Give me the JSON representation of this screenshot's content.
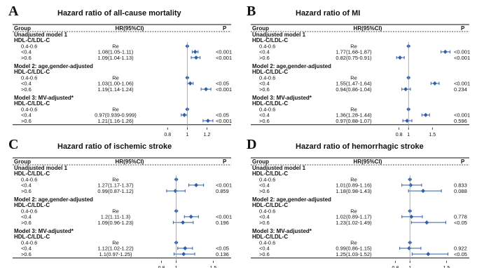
{
  "chart_data": [
    {
      "type": "forest",
      "panel": "A",
      "title": "Hazard ratio of all-cause mortality",
      "headers": {
        "group": "Group",
        "hr": "HR(95%CI)",
        "p": "P"
      },
      "xticks": [
        0.8,
        1,
        1.2
      ],
      "xlim": [
        0.72,
        1.36
      ],
      "ref": 1,
      "rows": [
        {
          "label": "Unadjusted model 1",
          "kind": "model"
        },
        {
          "label": "HDL-C/LDL-C",
          "kind": "sub"
        },
        {
          "label": "0.4-0.6",
          "kind": "ref",
          "hr_text": "Re",
          "est": 1
        },
        {
          "label": "<0.4",
          "kind": "data",
          "hr_text": "1.08(1.05-1.11)",
          "p": "<0.001",
          "est": 1.08,
          "lo": 1.05,
          "hi": 1.11
        },
        {
          "label": ">0.6",
          "kind": "data",
          "hr_text": "1.09(1.04-1.13)",
          "p": "<0.001",
          "est": 1.09,
          "lo": 1.04,
          "hi": 1.13
        },
        {
          "label": "Model 2: age,gender-adjusted",
          "kind": "model"
        },
        {
          "label": "HDL-C/LDL-C",
          "kind": "sub"
        },
        {
          "label": "0.4-0.6",
          "kind": "ref",
          "hr_text": "Re",
          "est": 1
        },
        {
          "label": "<0.4",
          "kind": "data",
          "hr_text": "1.03(1.00-1.06)",
          "p": "<0.05",
          "est": 1.03,
          "lo": 1.0,
          "hi": 1.06
        },
        {
          "label": ">0.6",
          "kind": "data",
          "hr_text": "1.19(1.14-1.24)",
          "p": "<0.001",
          "est": 1.19,
          "lo": 1.14,
          "hi": 1.24
        },
        {
          "label": "Model 3: MV-adjusted*",
          "kind": "model"
        },
        {
          "label": "HDL-C/LDL-C",
          "kind": "sub"
        },
        {
          "label": "0.4-0.6",
          "kind": "ref",
          "hr_text": "Re",
          "est": 1
        },
        {
          "label": "<0.4",
          "kind": "data",
          "hr_text": "0.97(0.939-0.999)",
          "p": "<0.05",
          "est": 0.97,
          "lo": 0.939,
          "hi": 0.999
        },
        {
          "label": ">0.6",
          "kind": "data",
          "hr_text": "1.21(1.16-1.26)",
          "p": "<0.001",
          "est": 1.21,
          "lo": 1.16,
          "hi": 1.26
        }
      ]
    },
    {
      "type": "forest",
      "panel": "B",
      "title": "Hazard ratio of MI",
      "headers": {
        "group": "Group",
        "hr": "HR(95%CI)",
        "p": "P"
      },
      "xticks": [
        0.8,
        1,
        1.5
      ],
      "xlim": [
        0.6,
        1.95
      ],
      "ref": 1,
      "rows": [
        {
          "label": "Unadjusted model 1",
          "kind": "model"
        },
        {
          "label": "HDL-C/LDL-C",
          "kind": "sub"
        },
        {
          "label": "0.4-0.6",
          "kind": "ref",
          "hr_text": "Re",
          "est": 1
        },
        {
          "label": "<0.4",
          "kind": "data",
          "hr_text": "1.77(1.68-1.87)",
          "p": "<0.001",
          "est": 1.77,
          "lo": 1.68,
          "hi": 1.87
        },
        {
          "label": ">0.6",
          "kind": "data",
          "hr_text": "0.82(0.75-0.91)",
          "p": "<0.001",
          "est": 0.82,
          "lo": 0.75,
          "hi": 0.91
        },
        {
          "label": "Model 2: age,gender-adjusted",
          "kind": "model"
        },
        {
          "label": "HDL-C/LDL-C",
          "kind": "sub"
        },
        {
          "label": "0.4-0.6",
          "kind": "ref",
          "hr_text": "Re",
          "est": 1
        },
        {
          "label": "<0.4",
          "kind": "data",
          "hr_text": "1.55(1.47-1.64)",
          "p": "<0.001",
          "est": 1.55,
          "lo": 1.47,
          "hi": 1.64
        },
        {
          "label": ">0.6",
          "kind": "data",
          "hr_text": "0.94(0.86-1.04)",
          "p": "0.234",
          "est": 0.94,
          "lo": 0.86,
          "hi": 1.04
        },
        {
          "label": "Model 3: MV-adjusted*",
          "kind": "model"
        },
        {
          "label": "HDL-C/LDL-C",
          "kind": "sub"
        },
        {
          "label": "0.4-0.6",
          "kind": "ref",
          "hr_text": "Re",
          "est": 1
        },
        {
          "label": "<0.4",
          "kind": "data",
          "hr_text": "1.36(1.28-1.44)",
          "p": "<0.001",
          "est": 1.36,
          "lo": 1.28,
          "hi": 1.44
        },
        {
          "label": ">0.6",
          "kind": "data",
          "hr_text": "0.97(0.88-1.07)",
          "p": "0.596",
          "est": 0.97,
          "lo": 0.88,
          "hi": 1.07
        }
      ]
    },
    {
      "type": "forest",
      "panel": "C",
      "title": "Hazard ratio of ischemic stroke",
      "headers": {
        "group": "Group",
        "hr": "HR(95%CI)",
        "p": "P"
      },
      "xticks": [
        0.8,
        1,
        1.5
      ],
      "xlim": [
        0.72,
        1.6
      ],
      "ref": 1,
      "rows": [
        {
          "label": "Unadjusted model 1",
          "kind": "model"
        },
        {
          "label": "HDL-C/LDL-C",
          "kind": "sub"
        },
        {
          "label": "0.4-0.6",
          "kind": "ref",
          "hr_text": "Re",
          "est": 1
        },
        {
          "label": "<0.4",
          "kind": "data",
          "hr_text": "1.27(1.17-1.37)",
          "p": "<0.001",
          "est": 1.27,
          "lo": 1.17,
          "hi": 1.37
        },
        {
          "label": ">0.6",
          "kind": "data",
          "hr_text": "0.99(0.87-1.12)",
          "p": "0.859",
          "est": 0.99,
          "lo": 0.87,
          "hi": 1.12
        },
        {
          "label": "Model 2: age,gender-adjusted",
          "kind": "model"
        },
        {
          "label": "HDL-C/LDL-C",
          "kind": "sub"
        },
        {
          "label": "0.4-0.6",
          "kind": "ref",
          "hr_text": "Re",
          "est": 1
        },
        {
          "label": "<0.4",
          "kind": "data",
          "hr_text": "1.2(1.11-1.3)",
          "p": "<0.001",
          "est": 1.2,
          "lo": 1.11,
          "hi": 1.3
        },
        {
          "label": ">0.6",
          "kind": "data",
          "hr_text": "1.09(0.96-1.23)",
          "p": "0.196",
          "est": 1.09,
          "lo": 0.96,
          "hi": 1.23
        },
        {
          "label": "Model 3: MV-adjusted*",
          "kind": "model"
        },
        {
          "label": "HDL-C/LDL-C",
          "kind": "sub"
        },
        {
          "label": "0.4-0.6",
          "kind": "ref",
          "hr_text": "Re",
          "est": 1
        },
        {
          "label": "<0.4",
          "kind": "data",
          "hr_text": "1.12(1.02-1.22)",
          "p": "<0.05",
          "est": 1.12,
          "lo": 1.02,
          "hi": 1.22
        },
        {
          "label": ">0.6",
          "kind": "data",
          "hr_text": "1.1(0.97-1.25)",
          "p": "0.136",
          "est": 1.1,
          "lo": 0.97,
          "hi": 1.25
        }
      ]
    },
    {
      "type": "forest",
      "panel": "D",
      "title": "Hazard ratio of hemorrhagic stroke",
      "headers": {
        "group": "Group",
        "hr": "HR(95%CI)",
        "p": "P"
      },
      "xticks": [
        0.8,
        1,
        1.5
      ],
      "xlim": [
        0.72,
        1.62
      ],
      "ref": 1,
      "rows": [
        {
          "label": "Unadjusted model 1",
          "kind": "model"
        },
        {
          "label": "HDL-C/LDL-C",
          "kind": "sub"
        },
        {
          "label": "0.4-0.6",
          "kind": "ref",
          "hr_text": "Re",
          "est": 1
        },
        {
          "label": "<0.4",
          "kind": "data",
          "hr_text": "1.01(0.89-1.16)",
          "p": "0.833",
          "est": 1.01,
          "lo": 0.89,
          "hi": 1.16
        },
        {
          "label": ">0.6",
          "kind": "data",
          "hr_text": "1.18(0.98-1.43)",
          "p": "0.088",
          "est": 1.18,
          "lo": 0.98,
          "hi": 1.43
        },
        {
          "label": "Model 2: age,gender-adjusted",
          "kind": "model"
        },
        {
          "label": "HDL-C/LDL-C",
          "kind": "sub"
        },
        {
          "label": "0.4-0.6",
          "kind": "ref",
          "hr_text": "Re",
          "est": 1
        },
        {
          "label": "<0.4",
          "kind": "data",
          "hr_text": "1.02(0.89-1.17)",
          "p": "0.778",
          "est": 1.02,
          "lo": 0.89,
          "hi": 1.17
        },
        {
          "label": ">0.6",
          "kind": "data",
          "hr_text": "1.23(1.02-1.49)",
          "p": "<0.05",
          "est": 1.23,
          "lo": 1.02,
          "hi": 1.49
        },
        {
          "label": "Model 3: MV-adjusted*",
          "kind": "model"
        },
        {
          "label": "HDL-C/LDL-C",
          "kind": "sub"
        },
        {
          "label": "0.4-0.6",
          "kind": "ref",
          "hr_text": "Re",
          "est": 1
        },
        {
          "label": "<0.4",
          "kind": "data",
          "hr_text": "0.99(0.86-1.15)",
          "p": "0.922",
          "est": 0.99,
          "lo": 0.86,
          "hi": 1.15
        },
        {
          "label": ">0.6",
          "kind": "data",
          "hr_text": "1.25(1.03-1.52)",
          "p": "<0.05",
          "est": 1.25,
          "lo": 1.03,
          "hi": 1.52
        }
      ]
    }
  ],
  "colors": {
    "marker": "#2e5fa8",
    "ref_line": "#999999",
    "text": "#111111"
  }
}
